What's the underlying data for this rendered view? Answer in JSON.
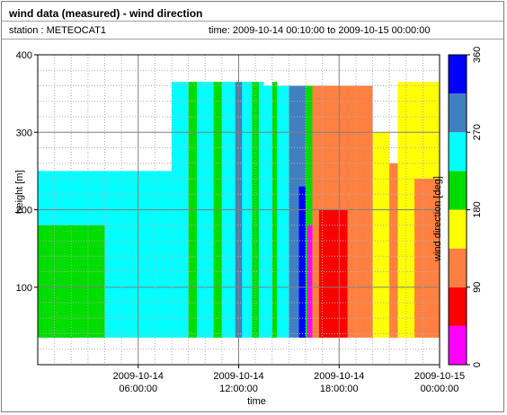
{
  "header": {
    "title": "wind data (measured) - wind direction",
    "station": "station : METEOCAT1",
    "time_range": "time: 2009-10-14 00:10:00 to 2009-10-15 00:00:00"
  },
  "chart_data": {
    "type": "heatmap",
    "xlabel": "time",
    "ylabel": "height [m]",
    "colorbar_label": "wind direction [deg]",
    "xlim_hours": [
      0,
      24
    ],
    "ylim": [
      0,
      400
    ],
    "x_ticks": [
      {
        "hour": 6,
        "line1": "2009-10-14",
        "line2": "06:00:00"
      },
      {
        "hour": 12,
        "line1": "2009-10-14",
        "line2": "12:00:00"
      },
      {
        "hour": 18,
        "line1": "2009-10-14",
        "line2": "18:00:00"
      },
      {
        "hour": 24,
        "line1": "2009-10-15",
        "line2": "00:00:00"
      }
    ],
    "y_ticks": [
      100,
      200,
      300,
      400
    ],
    "colorbar_ticks": [
      0,
      90,
      180,
      270,
      360
    ],
    "colorbar_bins": [
      {
        "from": 0,
        "to": 45,
        "color": "#ff00ff"
      },
      {
        "from": 45,
        "to": 90,
        "color": "#ff0000"
      },
      {
        "from": 90,
        "to": 135,
        "color": "#ff8040"
      },
      {
        "from": 135,
        "to": 180,
        "color": "#ffff00"
      },
      {
        "from": 180,
        "to": 225,
        "color": "#00dd00"
      },
      {
        "from": 225,
        "to": 270,
        "color": "#00ffff"
      },
      {
        "from": 270,
        "to": 315,
        "color": "#4080c0"
      },
      {
        "from": 315,
        "to": 360,
        "color": "#0000ff"
      }
    ],
    "regions": [
      {
        "t0": 0.0,
        "t1": 8.0,
        "dir": 250,
        "top": 250
      },
      {
        "t0": 0.0,
        "t1": 4.0,
        "dir": 200,
        "top": 180
      },
      {
        "t0": 1.0,
        "t1": 2.5,
        "dir": 200,
        "top": 130
      },
      {
        "t0": 8.0,
        "t1": 13.5,
        "dir": 250,
        "top": 365
      },
      {
        "t0": 13.5,
        "t1": 15.0,
        "dir": 250,
        "top": 360
      },
      {
        "t0": 15.0,
        "t1": 16.0,
        "dir": 290,
        "top": 360
      },
      {
        "t0": 15.6,
        "t1": 16.1,
        "dir": 330,
        "top": 230
      },
      {
        "t0": 16.0,
        "t1": 16.8,
        "dir": 180,
        "top": 360
      },
      {
        "t0": 16.1,
        "t1": 16.4,
        "dir": 20,
        "top": 180
      },
      {
        "t0": 16.4,
        "t1": 20.0,
        "dir": 110,
        "top": 360
      },
      {
        "t0": 16.8,
        "t1": 18.5,
        "dir": 70,
        "top": 200
      },
      {
        "t0": 20.0,
        "t1": 21.0,
        "dir": 160,
        "top": 300
      },
      {
        "t0": 21.0,
        "t1": 22.5,
        "dir": 110,
        "top": 260
      },
      {
        "t0": 21.5,
        "t1": 24.0,
        "dir": 160,
        "top": 365
      },
      {
        "t0": 22.5,
        "t1": 24.0,
        "dir": 110,
        "top": 240
      },
      {
        "t0": 9.0,
        "t1": 9.5,
        "dir": 200,
        "top": 365
      },
      {
        "t0": 10.5,
        "t1": 11.0,
        "dir": 200,
        "top": 365
      },
      {
        "t0": 11.8,
        "t1": 12.2,
        "dir": 290,
        "top": 365
      },
      {
        "t0": 12.8,
        "t1": 13.2,
        "dir": 200,
        "top": 365
      },
      {
        "t0": 14.0,
        "t1": 14.3,
        "dir": 200,
        "top": 365
      }
    ]
  }
}
